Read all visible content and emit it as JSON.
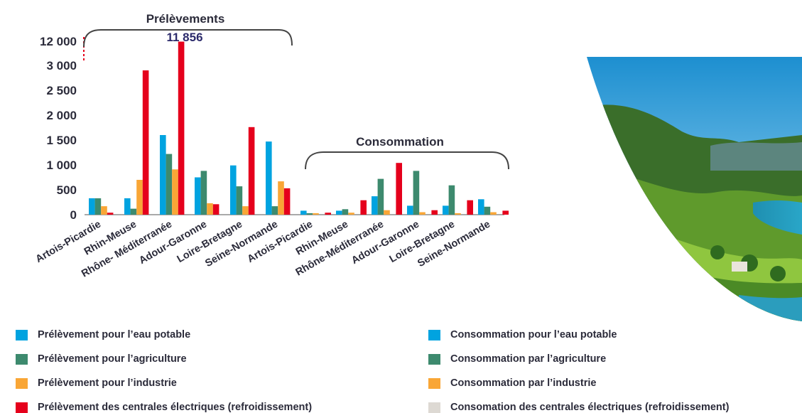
{
  "chart_data": {
    "type": "bar",
    "group_labels": {
      "withdrawals": "Prélèvements",
      "consumption": "Consommation"
    },
    "y_ticks": [
      "0",
      "500",
      "1 000",
      "1 500",
      "2 000",
      "2 500",
      "3 000",
      "12 000"
    ],
    "y_break": {
      "from": 3000,
      "to": 12000
    },
    "ylim": [
      0,
      12000
    ],
    "annotation": "11 856",
    "categories": [
      "Artois-Picardie",
      "Rhin-Meuse",
      "Rhône- Méditerranée",
      "Adour-Garonne",
      "Loire-Bretagne",
      "Seine-Normande",
      "Artois-Picardie",
      "Rhin-Meuse",
      "Rhône-Méditerranée",
      "Adour-Garonne",
      "Loire-Bretagne",
      "Seine-Normande"
    ],
    "series": [
      {
        "name": "Prélèvement pour l’eau potable",
        "color": "#00a3e0",
        "values": [
          330,
          330,
          1600,
          750,
          990,
          1470,
          null,
          null,
          null,
          null,
          null,
          null
        ]
      },
      {
        "name": "Prélèvement pour l’agriculture",
        "color": "#3d8a6e",
        "values": [
          330,
          120,
          1220,
          880,
          570,
          170,
          null,
          null,
          null,
          null,
          null,
          null
        ]
      },
      {
        "name": "Prélèvement pour l’industrie",
        "color": "#f9a636",
        "values": [
          170,
          700,
          910,
          230,
          170,
          670,
          null,
          null,
          null,
          null,
          null,
          null
        ]
      },
      {
        "name": "Prélèvement des centrales électriques (refroidissement)",
        "color": "#e5001c",
        "values": [
          40,
          2900,
          11856,
          210,
          1760,
          530,
          null,
          null,
          null,
          null,
          null,
          null
        ]
      },
      {
        "name": "Consommation pour l’eau potable",
        "color": "#00a3e0",
        "values": [
          null,
          null,
          null,
          null,
          null,
          null,
          80,
          80,
          370,
          180,
          180,
          310
        ]
      },
      {
        "name": "Consommation par l’agriculture",
        "color": "#3d8a6e",
        "values": [
          null,
          null,
          null,
          null,
          null,
          null,
          30,
          110,
          720,
          880,
          590,
          160
        ]
      },
      {
        "name": "Consommation par l’industrie",
        "color": "#f9a636",
        "values": [
          null,
          null,
          null,
          null,
          null,
          null,
          30,
          40,
          90,
          50,
          30,
          50
        ]
      },
      {
        "name": "Consomation des centrales électriques (refroidissement)",
        "color": "#ddd9d3",
        "values": [
          null,
          null,
          null,
          null,
          null,
          null,
          0,
          0,
          0,
          0,
          0,
          0
        ]
      },
      {
        "name": "",
        "color": "#e5001c",
        "values": [
          null,
          null,
          null,
          null,
          null,
          null,
          40,
          290,
          1040,
          90,
          290,
          80
        ]
      }
    ],
    "legend_left": [
      {
        "label": "Prélèvement pour l’eau potable",
        "color": "#00a3e0"
      },
      {
        "label": "Prélèvement pour l’agriculture",
        "color": "#3d8a6e"
      },
      {
        "label": "Prélèvement pour l’industrie",
        "color": "#f9a636"
      },
      {
        "label": "Prélèvement des centrales électriques (refroidissement)",
        "color": "#e5001c"
      }
    ],
    "legend_right": [
      {
        "label": "Consommation pour l’eau potable",
        "color": "#00a3e0"
      },
      {
        "label": "Consommation par l’agriculture",
        "color": "#3d8a6e"
      },
      {
        "label": "Consommation par l’industrie",
        "color": "#f9a636"
      },
      {
        "label": "Consomation des centrales électriques (refroidissement)",
        "color": "#ddd9d3"
      }
    ]
  },
  "colors": {
    "text": "#2b2b3a",
    "annotation": "#2b2a6b",
    "break_line": "#e5001c",
    "axis": "#555555"
  },
  "photo": {
    "subject": "landscape-photo"
  }
}
